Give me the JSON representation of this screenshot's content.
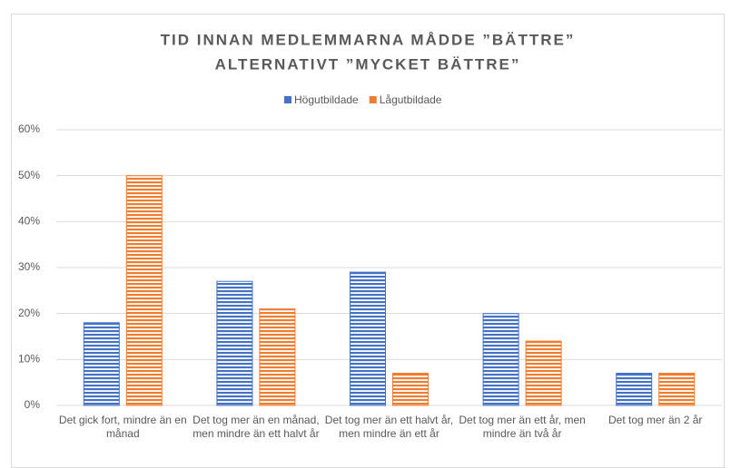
{
  "chart_data": {
    "type": "bar",
    "title": [
      "TID INNAN MEDLEMMARNA MÅDDE ”BÄTTRE”",
      "ALTERNATIVT ”MYCKET BÄTTRE”"
    ],
    "categories": [
      "Det gick fort, mindre än en månad",
      "Det tog mer än en månad, men mindre än ett halvt år",
      "Det tog mer än ett halvt år, men mindre än ett år",
      "Det tog mer än ett år, men mindre än två år",
      "Det tog mer än 2 år"
    ],
    "series": [
      {
        "name": "Högutbildade",
        "color": "#4472c4",
        "values": [
          18,
          27,
          29,
          20,
          7
        ]
      },
      {
        "name": "Lågutbildade",
        "color": "#ed7d31",
        "values": [
          50,
          21,
          7,
          14,
          7
        ]
      }
    ],
    "ylim": [
      0,
      60
    ],
    "yticks": [
      {
        "value": 0,
        "label": "0%"
      },
      {
        "value": 10,
        "label": "10%"
      },
      {
        "value": 20,
        "label": "20%"
      },
      {
        "value": 30,
        "label": "30%"
      },
      {
        "value": 40,
        "label": "40%"
      },
      {
        "value": 50,
        "label": "50%"
      },
      {
        "value": 60,
        "label": "60%"
      }
    ],
    "grid": true,
    "legend": "top"
  }
}
